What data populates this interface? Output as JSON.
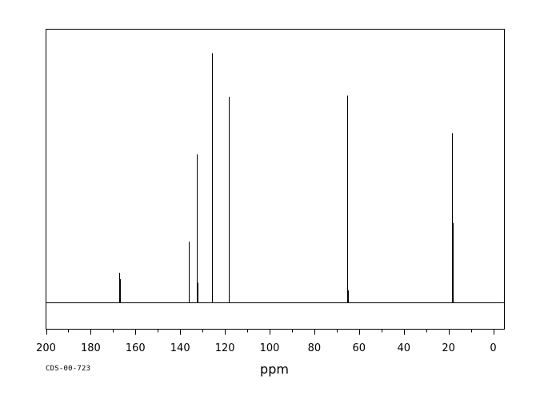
{
  "chart_data": {
    "type": "line",
    "spectrum_kind": "13C NMR stick spectrum",
    "xlabel": "ppm",
    "xlim": [
      200,
      -5
    ],
    "x_reversed": true,
    "x_ticks": [
      200,
      180,
      160,
      140,
      120,
      100,
      80,
      60,
      40,
      20,
      0
    ],
    "minor_tick_step": 10,
    "relative_intensity_range": [
      0,
      100
    ],
    "grid": false,
    "peaks": [
      {
        "ppm": 167.2,
        "intensity": 12.0
      },
      {
        "ppm": 166.9,
        "intensity": 9.5
      },
      {
        "ppm": 136.2,
        "intensity": 24.5
      },
      {
        "ppm": 132.6,
        "intensity": 59.5
      },
      {
        "ppm": 132.2,
        "intensity": 8.0
      },
      {
        "ppm": 125.9,
        "intensity": 81.5
      },
      {
        "ppm": 125.6,
        "intensity": 100.0
      },
      {
        "ppm": 118.2,
        "intensity": 82.5
      },
      {
        "ppm": 65.3,
        "intensity": 83.0
      },
      {
        "ppm": 65.0,
        "intensity": 5.0
      },
      {
        "ppm": 18.4,
        "intensity": 68.0
      },
      {
        "ppm": 18.1,
        "intensity": 32.0
      }
    ]
  },
  "footer": {
    "catalog_id": "CDS-00-723"
  },
  "colors": {
    "ink": "#000000",
    "background": "#ffffff"
  }
}
